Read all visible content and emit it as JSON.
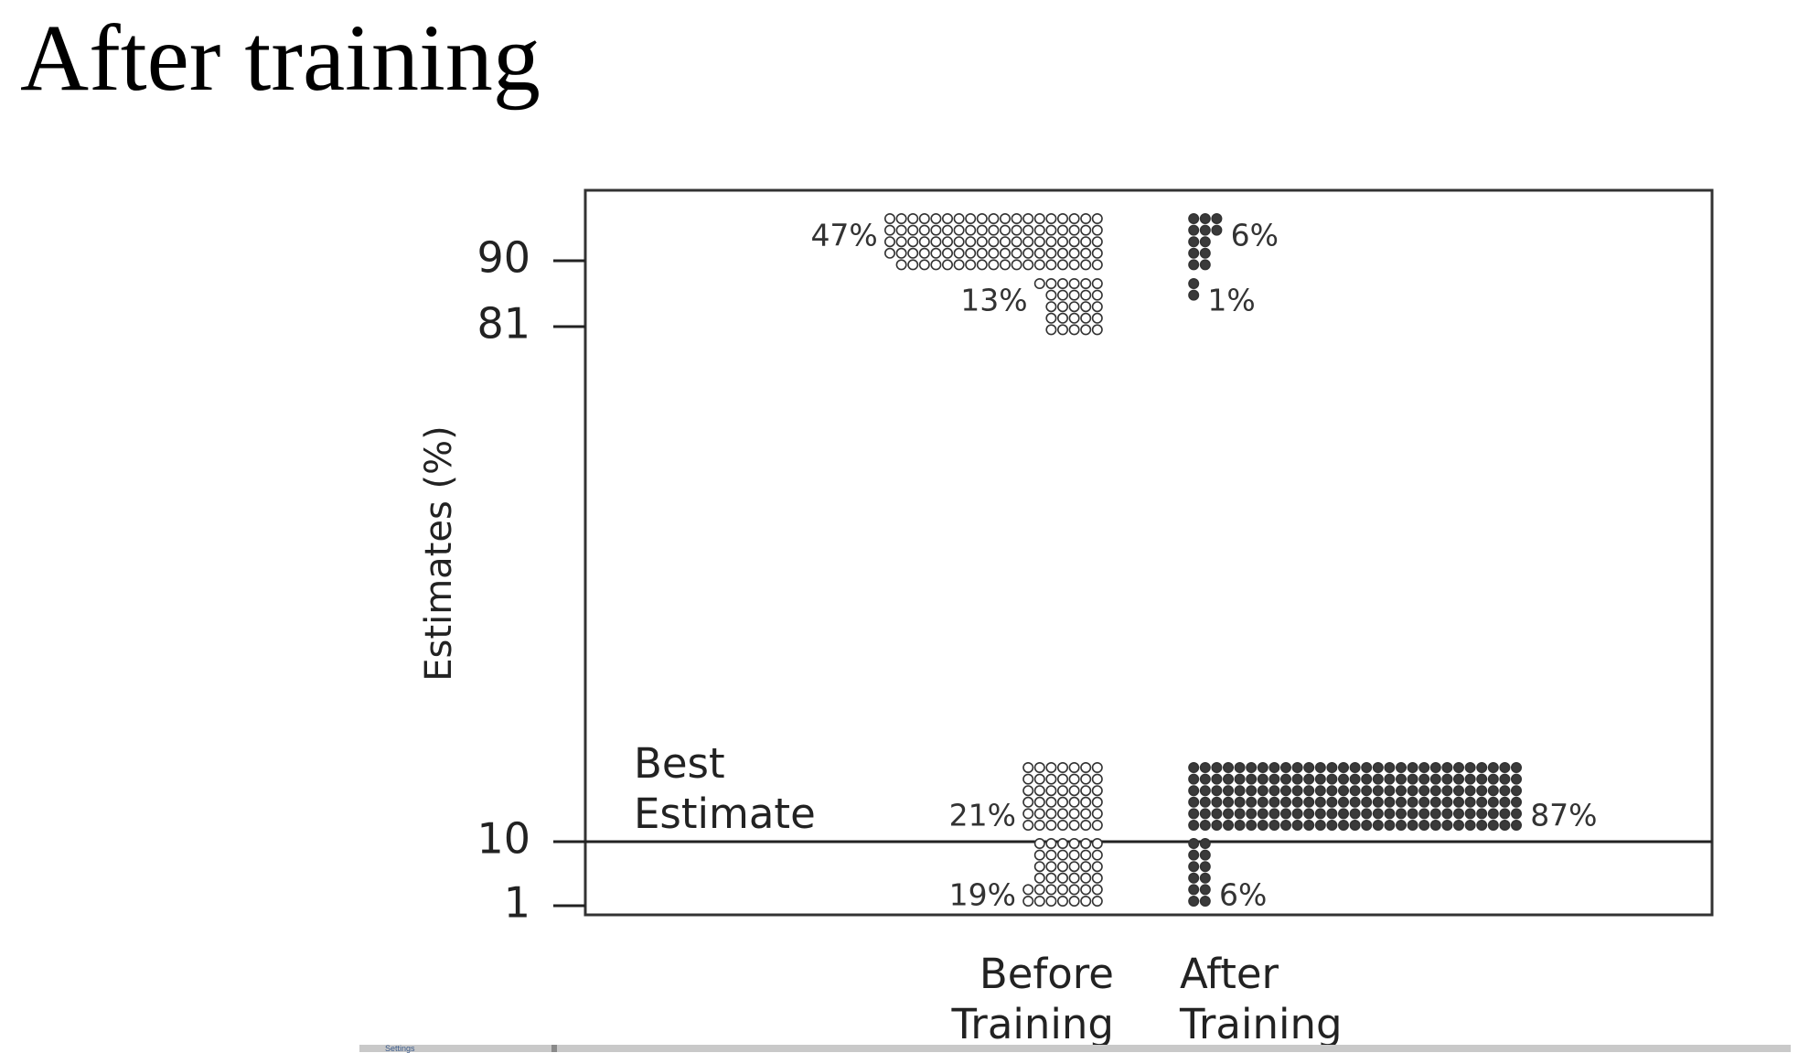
{
  "slide": {
    "title": "After training"
  },
  "footer": {
    "fragment": "Settings"
  },
  "chart_data": {
    "type": "dot-plot",
    "ylabel": "Estimates (%)",
    "yticks": [
      "90",
      "81",
      "10",
      "1"
    ],
    "reference_line": {
      "y": "10",
      "label": "Best Estimate",
      "label_lines": [
        "Best",
        "Estimate"
      ]
    },
    "categories": [
      {
        "name": "Before Training",
        "lines": [
          "Before",
          "Training"
        ]
      },
      {
        "name": "After Training",
        "lines": [
          "After",
          "Training"
        ]
      }
    ],
    "markers": {
      "Before Training": "open-circle",
      "After Training": "filled-circle"
    },
    "colors": {
      "open_fill": "#ffffff",
      "filled": "#3a3a3a",
      "stroke": "#333333"
    },
    "points": [
      {
        "category": "Before Training",
        "estimate": "90",
        "percent": 47,
        "label": "47%"
      },
      {
        "category": "Before Training",
        "estimate": "81",
        "percent": 13,
        "label": "13%"
      },
      {
        "category": "Before Training",
        "estimate": "10",
        "percent": 21,
        "label": "21%"
      },
      {
        "category": "Before Training",
        "estimate": "1",
        "percent": 19,
        "label": "19%"
      },
      {
        "category": "After Training",
        "estimate": "90",
        "percent": 6,
        "label": "6%"
      },
      {
        "category": "After Training",
        "estimate": "81",
        "percent": 1,
        "label": "1%"
      },
      {
        "category": "After Training",
        "estimate": "10",
        "percent": 87,
        "label": "87%"
      },
      {
        "category": "After Training",
        "estimate": "1",
        "percent": 6,
        "label": "6%"
      }
    ]
  }
}
